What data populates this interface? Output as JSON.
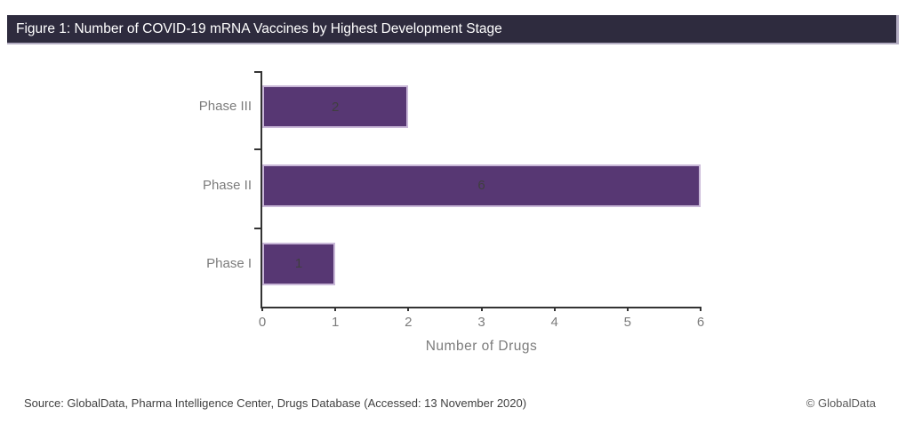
{
  "header": {
    "title": "Figure 1: Number of COVID-19 mRNA Vaccines by Highest Development Stage"
  },
  "chart_data": {
    "type": "bar",
    "orientation": "horizontal",
    "categories": [
      "Phase III",
      "Phase II",
      "Phase I"
    ],
    "values": [
      2,
      6,
      1
    ],
    "title": "Figure 1: Number of COVID-19 mRNA Vaccines by Highest Development Stage",
    "xlabel": "Number of Drugs",
    "ylabel": "",
    "x_ticks": [
      0,
      1,
      2,
      3,
      4,
      5,
      6
    ],
    "xlim": [
      0,
      6
    ],
    "grid": "off",
    "legend": "none",
    "bar_color": "#573773",
    "bar_border_color": "#c9b8d8",
    "value_label_color": "#3f3f3f",
    "axis_color": "#333333",
    "tick_label_color": "#7c7c7c"
  },
  "footer": {
    "source": "Source: GlobalData, Pharma Intelligence Center, Drugs Database (Accessed: 13 November 2020)",
    "copyright": "© GlobalData"
  }
}
